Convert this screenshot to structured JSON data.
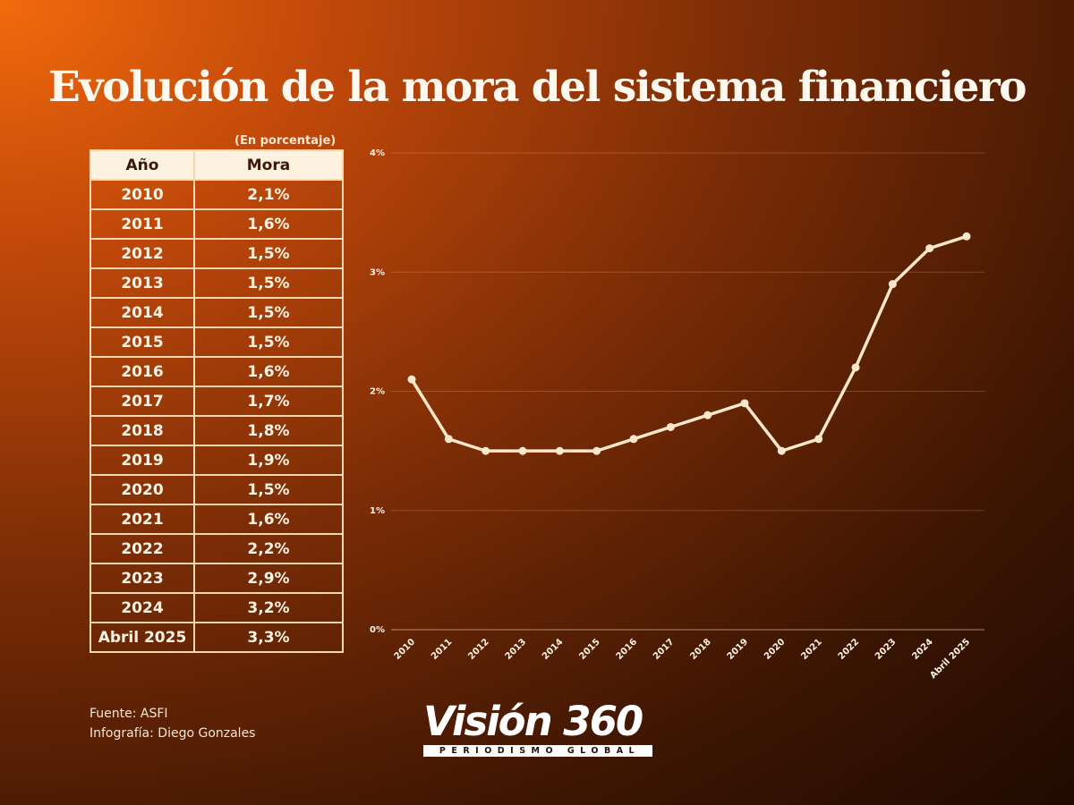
{
  "title": "Evolución de la mora del sistema financiero",
  "unit_note": "(En porcentaje)",
  "table": {
    "headers": [
      "Año",
      "Mora"
    ],
    "rows": [
      [
        "2010",
        "2,1%"
      ],
      [
        "2011",
        "1,6%"
      ],
      [
        "2012",
        "1,5%"
      ],
      [
        "2013",
        "1,5%"
      ],
      [
        "2014",
        "1,5%"
      ],
      [
        "2015",
        "1,5%"
      ],
      [
        "2016",
        "1,6%"
      ],
      [
        "2017",
        "1,7%"
      ],
      [
        "2018",
        "1,8%"
      ],
      [
        "2019",
        "1,9%"
      ],
      [
        "2020",
        "1,5%"
      ],
      [
        "2021",
        "1,6%"
      ],
      [
        "2022",
        "2,2%"
      ],
      [
        "2023",
        "2,9%"
      ],
      [
        "2024",
        "3,2%"
      ],
      [
        "Abril 2025",
        "3,3%"
      ]
    ]
  },
  "chart_data": {
    "type": "line",
    "title": "Evolución de la mora del sistema financiero",
    "xlabel": "",
    "ylabel": "",
    "x": [
      "2010",
      "2011",
      "2012",
      "2013",
      "2014",
      "2015",
      "2016",
      "2017",
      "2018",
      "2019",
      "2020",
      "2021",
      "2022",
      "2023",
      "2024",
      "Abril 2025"
    ],
    "values": [
      2.1,
      1.6,
      1.5,
      1.5,
      1.5,
      1.5,
      1.6,
      1.7,
      1.8,
      1.9,
      1.5,
      1.6,
      2.2,
      2.9,
      3.2,
      3.3
    ],
    "ylim": [
      0,
      4
    ],
    "yticks": [
      0,
      1,
      2,
      3,
      4
    ],
    "ytick_labels": [
      "0%",
      "1%",
      "2%",
      "3%",
      "4%"
    ],
    "grid": true,
    "line_color": "#fbe8cc"
  },
  "footer": {
    "source": "Fuente: ASFI",
    "credit": "Infografía: Diego Gonzales"
  },
  "logo": {
    "name": "Visión 360",
    "tagline": "PERIODISMO GLOBAL"
  }
}
